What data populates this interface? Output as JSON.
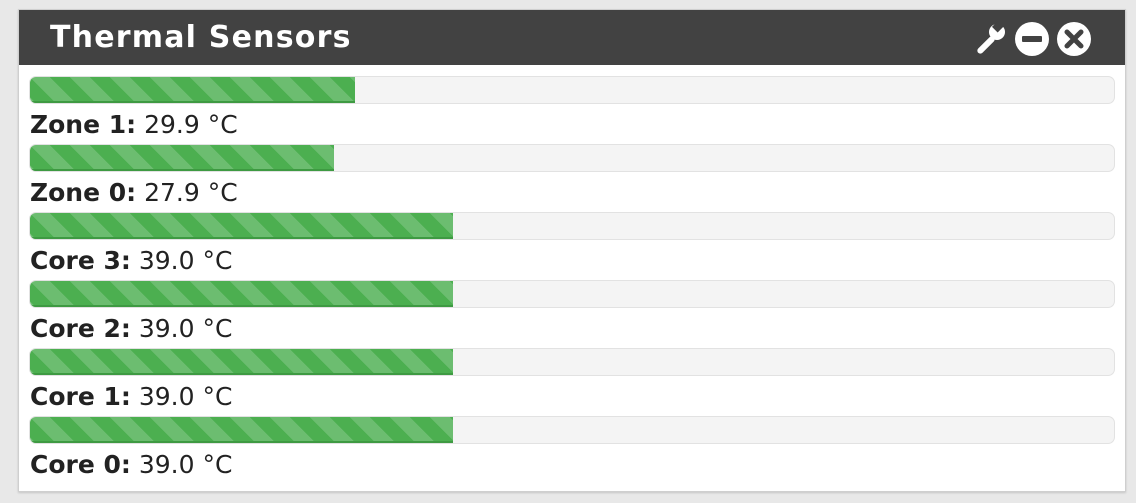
{
  "widget": {
    "title": "Thermal Sensors",
    "icons": [
      "wrench-icon",
      "minus-circle-icon",
      "close-circle-icon"
    ]
  },
  "colors": {
    "header_bg": "#424242",
    "bar_fill": "#4caf50",
    "bar_track": "#f4f4f4"
  },
  "sensors": [
    {
      "name": "Zone 1:",
      "value": "29.9 °C",
      "level": 0.3
    },
    {
      "name": "Zone 0:",
      "value": "27.9 °C",
      "level": 0.28
    },
    {
      "name": "Core 3:",
      "value": "39.0 °C",
      "level": 0.39
    },
    {
      "name": "Core 2:",
      "value": "39.0 °C",
      "level": 0.39
    },
    {
      "name": "Core 1:",
      "value": "39.0 °C",
      "level": 0.39
    },
    {
      "name": "Core 0:",
      "value": "39.0 °C",
      "level": 0.39
    }
  ]
}
